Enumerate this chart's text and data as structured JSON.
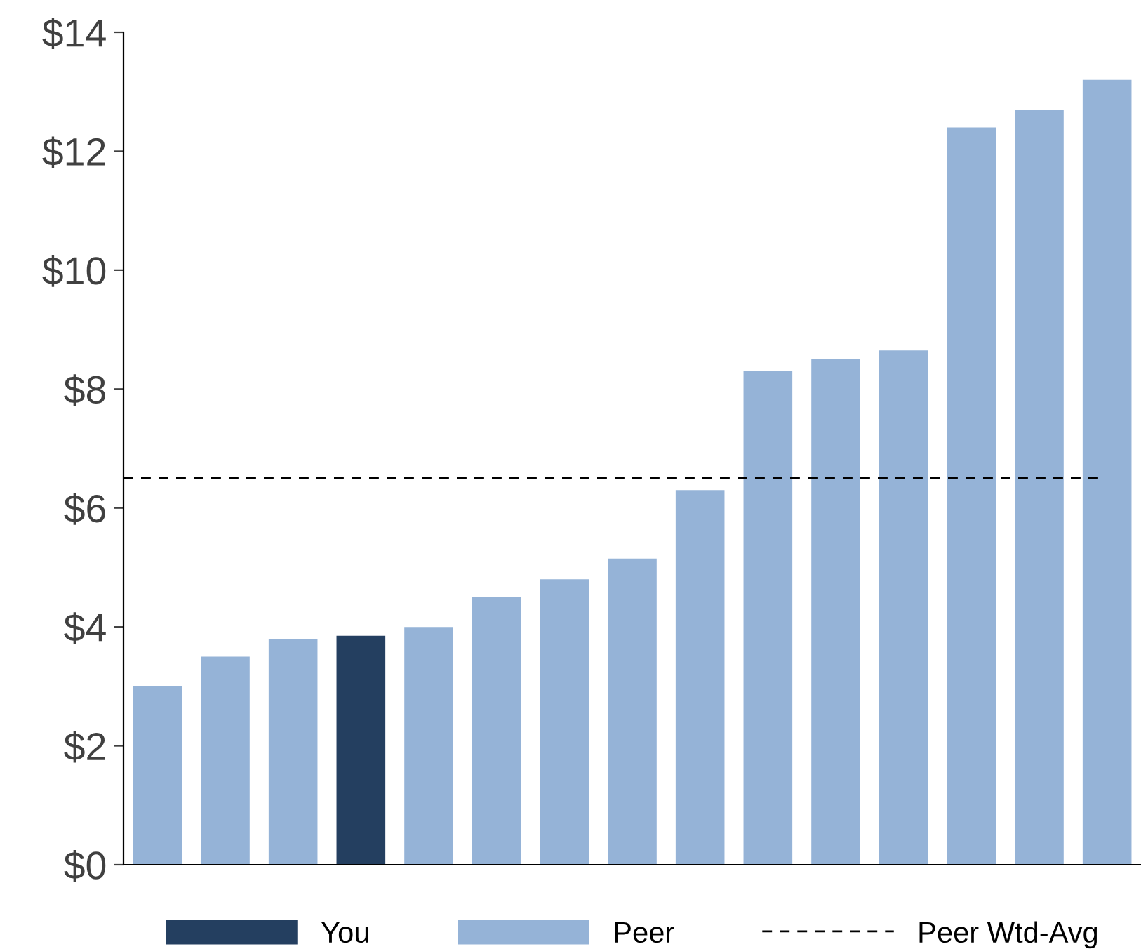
{
  "chart_data": {
    "type": "bar",
    "categories": [
      null,
      null,
      null,
      null,
      null,
      null,
      null,
      null,
      null,
      null,
      null,
      null,
      null,
      null,
      null
    ],
    "series": [
      {
        "name": "You",
        "color": "#243f60",
        "values": [
          null,
          null,
          null,
          3.85,
          null,
          null,
          null,
          null,
          null,
          null,
          null,
          null,
          null,
          null,
          null
        ]
      },
      {
        "name": "Peer",
        "color": "#95b3d7",
        "values": [
          3.0,
          3.5,
          3.8,
          null,
          4.0,
          4.5,
          4.8,
          5.15,
          6.3,
          8.3,
          8.5,
          8.65,
          12.4,
          12.7,
          13.2
        ]
      }
    ],
    "ylim": [
      0,
      14
    ],
    "yticks": [
      {
        "value": 0,
        "label": "$0"
      },
      {
        "value": 2,
        "label": "$2"
      },
      {
        "value": 4,
        "label": "$4"
      },
      {
        "value": 6,
        "label": "$6"
      },
      {
        "value": 8,
        "label": "$8"
      },
      {
        "value": 10,
        "label": "$10"
      },
      {
        "value": 12,
        "label": "$12"
      },
      {
        "value": 14,
        "label": "$14"
      }
    ],
    "ref_lines": [
      {
        "axis": "y",
        "value": 6.5,
        "label": "Peer Wtd-Avg",
        "color": "#000000",
        "line_style": "dashed"
      }
    ],
    "grid": false,
    "legend": "bottom",
    "tick_labels": "y"
  }
}
